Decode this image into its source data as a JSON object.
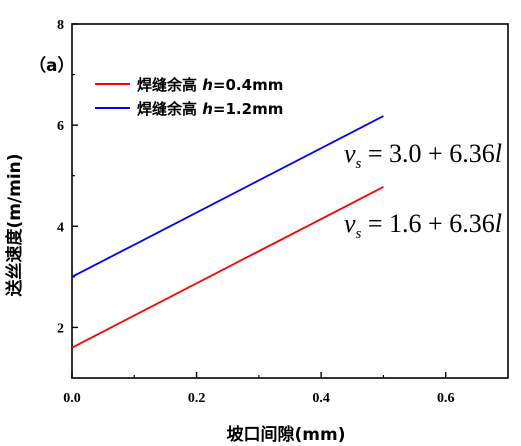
{
  "chart_data": {
    "type": "line",
    "panel_label": "（a）",
    "xlabel": "坡口间隙(mm)",
    "ylabel": "送丝速度(m/min)",
    "xlim": [
      0,
      0.7
    ],
    "ylim": [
      1,
      8
    ],
    "x_ticks": [
      "0.0",
      "0.2",
      "0.4",
      "0.6"
    ],
    "y_ticks": [
      "2",
      "4",
      "6",
      "8"
    ],
    "grid": false,
    "legend_placement": "top-left",
    "series": [
      {
        "name_prefix": "焊缝余高 ",
        "name_var": "h",
        "name_suffix": "=0.4mm",
        "color": "#ff0000",
        "x": [
          0,
          0.5
        ],
        "y": [
          1.6,
          4.78
        ],
        "equation": {
          "lhs": "v",
          "sub": "s",
          "rhs": " = 1.6 + 6.36",
          "var": "l"
        }
      },
      {
        "name_prefix": "焊缝余高 ",
        "name_var": "h",
        "name_suffix": "=1.2mm",
        "color": "#0000ff",
        "x": [
          0,
          0.5
        ],
        "y": [
          3.0,
          6.18
        ],
        "equation": {
          "lhs": "v",
          "sub": "s",
          "rhs": " = 3.0 + 6.36",
          "var": "l"
        }
      }
    ]
  }
}
